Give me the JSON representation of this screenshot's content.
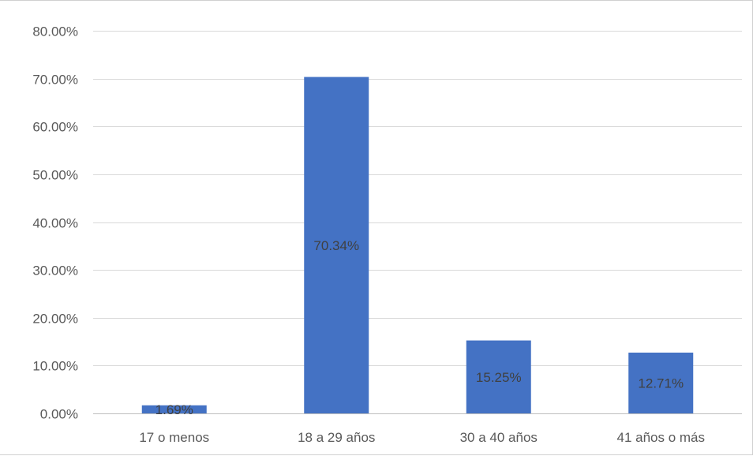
{
  "chart_data": {
    "type": "bar",
    "title": "",
    "xlabel": "",
    "ylabel": "",
    "categories": [
      "17 o menos",
      "18 a 29 años",
      "30 a 40 años",
      "41 años o más"
    ],
    "values": [
      1.69,
      70.34,
      15.25,
      12.71
    ],
    "data_labels": [
      "1.69%",
      "70.34%",
      "15.25%",
      "12.71%"
    ],
    "ylim": [
      0,
      80
    ],
    "yticks": [
      0,
      10,
      20,
      30,
      40,
      50,
      60,
      70,
      80
    ],
    "ytick_labels": [
      "0.00%",
      "10.00%",
      "20.00%",
      "30.00%",
      "40.00%",
      "50.00%",
      "60.00%",
      "70.00%",
      "80.00%"
    ],
    "grid": true,
    "legend": "none",
    "colors": {
      "bar": "#4472c4",
      "gridline": "#d9d9d9",
      "axis_line": "#bfbfbf",
      "tick_text": "#595959",
      "data_label_text": "#404040"
    }
  }
}
